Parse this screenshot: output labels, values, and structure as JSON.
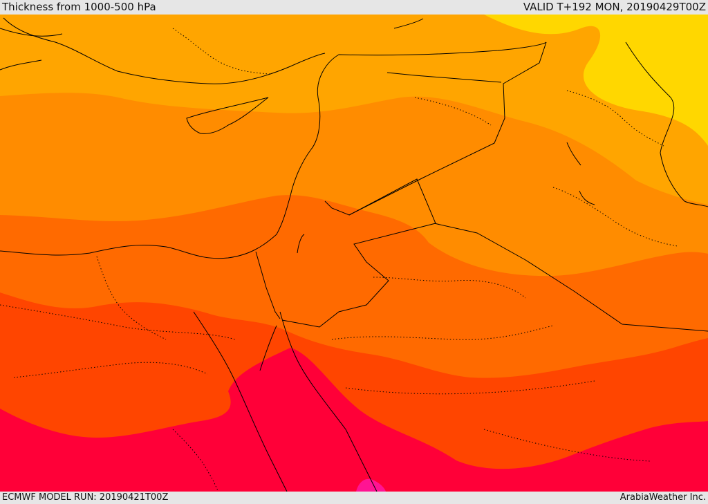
{
  "header": {
    "title": "Thickness from 1000-500 hPa",
    "valid": "VALID T+192 MON, 20190429T00Z"
  },
  "footer": {
    "model_run": "ECMWF MODEL RUN: 20190421T00Z",
    "credit": "ArabiaWeather Inc."
  },
  "colors": {
    "yellow": "#ffd700",
    "light_orange": "#ffa500",
    "orange": "#ff8c00",
    "dark_orange": "#ff6a00",
    "red_orange": "#ff4500",
    "crimson": "#ff0038",
    "magenta": "#ff1493",
    "border": "#000000"
  }
}
